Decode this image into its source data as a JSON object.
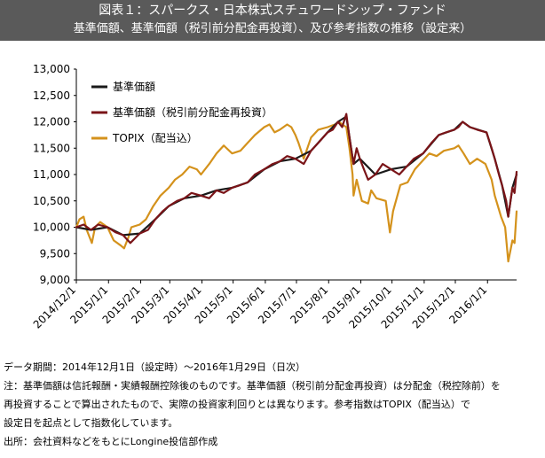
{
  "header": {
    "title": "図表１：スパークス・日本株式スチュワードシップ・ファンド",
    "subtitle": "基準価額、基準価額（税引前分配金再投資）、及び参考指数の推移（設定来）"
  },
  "chart_data": {
    "type": "line",
    "x_ticks": [
      "2014/12/1",
      "2015/1/1",
      "2015/2/1",
      "2015/3/1",
      "2015/4/1",
      "2015/5/1",
      "2015/6/1",
      "2015/7/1",
      "2015/8/1",
      "2015/9/1",
      "2015/10/1",
      "2015/11/1",
      "2015/12/1",
      "2016/1/1"
    ],
    "y_ticks": [
      "13,000",
      "12,500",
      "12,000",
      "11,500",
      "11,000",
      "10,500",
      "10,000",
      "9,500",
      "9,000"
    ],
    "ylim": [
      9000,
      13000
    ],
    "xlim": [
      "2014-12-01",
      "2016-01-29"
    ],
    "legend_position": "top-left",
    "series": [
      {
        "name": "基準価額",
        "color": "#1a1a1a",
        "points": [
          [
            "2014-12-01",
            10000
          ],
          [
            "2014-12-15",
            9950
          ],
          [
            "2014-12-31",
            10000
          ],
          [
            "2015-01-15",
            9850
          ],
          [
            "2015-01-31",
            9880
          ],
          [
            "2015-02-15",
            10150
          ],
          [
            "2015-02-28",
            10400
          ],
          [
            "2015-03-15",
            10550
          ],
          [
            "2015-03-31",
            10600
          ],
          [
            "2015-04-15",
            10700
          ],
          [
            "2015-04-30",
            10750
          ],
          [
            "2015-05-15",
            10850
          ],
          [
            "2015-05-31",
            11100
          ],
          [
            "2015-06-15",
            11250
          ],
          [
            "2015-06-30",
            11300
          ],
          [
            "2015-07-15",
            11450
          ],
          [
            "2015-07-31",
            11800
          ],
          [
            "2015-08-10",
            12000
          ],
          [
            "2015-08-18",
            12100
          ],
          [
            "2015-08-25",
            11200
          ],
          [
            "2015-08-31",
            11300
          ],
          [
            "2015-09-15",
            11000
          ],
          [
            "2015-09-30",
            11100
          ],
          [
            "2015-10-15",
            11150
          ],
          [
            "2015-10-31",
            11400
          ],
          [
            "2015-11-15",
            11750
          ],
          [
            "2015-11-30",
            11850
          ],
          [
            "2015-12-08",
            12000
          ],
          [
            "2015-12-15",
            11900
          ],
          [
            "2015-12-31",
            11800
          ],
          [
            "2016-01-08",
            11300
          ],
          [
            "2016-01-15",
            10800
          ],
          [
            "2016-01-21",
            10200
          ],
          [
            "2016-01-25",
            10750
          ],
          [
            "2016-01-29",
            11000
          ]
        ]
      },
      {
        "name": "基準価額（税引前分配金再投資）",
        "color": "#7a1418",
        "points": [
          [
            "2014-12-01",
            10000
          ],
          [
            "2014-12-08",
            10050
          ],
          [
            "2014-12-15",
            9950
          ],
          [
            "2014-12-22",
            10050
          ],
          [
            "2014-12-31",
            10000
          ],
          [
            "2015-01-08",
            9900
          ],
          [
            "2015-01-15",
            9850
          ],
          [
            "2015-01-22",
            9700
          ],
          [
            "2015-01-31",
            9880
          ],
          [
            "2015-02-08",
            9950
          ],
          [
            "2015-02-15",
            10150
          ],
          [
            "2015-02-22",
            10300
          ],
          [
            "2015-02-28",
            10400
          ],
          [
            "2015-03-08",
            10500
          ],
          [
            "2015-03-15",
            10550
          ],
          [
            "2015-03-22",
            10650
          ],
          [
            "2015-03-31",
            10600
          ],
          [
            "2015-04-08",
            10550
          ],
          [
            "2015-04-15",
            10700
          ],
          [
            "2015-04-22",
            10650
          ],
          [
            "2015-04-30",
            10750
          ],
          [
            "2015-05-08",
            10800
          ],
          [
            "2015-05-15",
            10850
          ],
          [
            "2015-05-22",
            11000
          ],
          [
            "2015-05-31",
            11100
          ],
          [
            "2015-06-08",
            11200
          ],
          [
            "2015-06-15",
            11250
          ],
          [
            "2015-06-22",
            11350
          ],
          [
            "2015-06-30",
            11300
          ],
          [
            "2015-07-08",
            11200
          ],
          [
            "2015-07-15",
            11450
          ],
          [
            "2015-07-22",
            11600
          ],
          [
            "2015-07-31",
            11800
          ],
          [
            "2015-08-05",
            11850
          ],
          [
            "2015-08-10",
            12000
          ],
          [
            "2015-08-14",
            11900
          ],
          [
            "2015-08-18",
            12150
          ],
          [
            "2015-08-21",
            11700
          ],
          [
            "2015-08-25",
            11200
          ],
          [
            "2015-08-28",
            11500
          ],
          [
            "2015-08-31",
            11300
          ],
          [
            "2015-09-04",
            11100
          ],
          [
            "2015-09-08",
            10900
          ],
          [
            "2015-09-15",
            11000
          ],
          [
            "2015-09-22",
            11200
          ],
          [
            "2015-09-30",
            11100
          ],
          [
            "2015-10-08",
            11000
          ],
          [
            "2015-10-15",
            11150
          ],
          [
            "2015-10-22",
            11300
          ],
          [
            "2015-10-31",
            11400
          ],
          [
            "2015-11-08",
            11600
          ],
          [
            "2015-11-15",
            11750
          ],
          [
            "2015-11-22",
            11800
          ],
          [
            "2015-11-30",
            11850
          ],
          [
            "2015-12-04",
            11900
          ],
          [
            "2015-12-08",
            12000
          ],
          [
            "2015-12-15",
            11900
          ],
          [
            "2015-12-22",
            11850
          ],
          [
            "2015-12-31",
            11800
          ],
          [
            "2016-01-05",
            11500
          ],
          [
            "2016-01-08",
            11300
          ],
          [
            "2016-01-12",
            11000
          ],
          [
            "2016-01-15",
            10800
          ],
          [
            "2016-01-19",
            10500
          ],
          [
            "2016-01-21",
            10200
          ],
          [
            "2016-01-25",
            10750
          ],
          [
            "2016-01-27",
            10650
          ],
          [
            "2016-01-29",
            11050
          ]
        ]
      },
      {
        "name": "TOPIX（配当込）",
        "color": "#d4921c",
        "points": [
          [
            "2014-12-01",
            10000
          ],
          [
            "2014-12-04",
            10150
          ],
          [
            "2014-12-08",
            10200
          ],
          [
            "2014-12-11",
            9950
          ],
          [
            "2014-12-16",
            9700
          ],
          [
            "2014-12-19",
            10000
          ],
          [
            "2014-12-24",
            10100
          ],
          [
            "2014-12-31",
            10000
          ],
          [
            "2015-01-06",
            9750
          ],
          [
            "2015-01-13",
            9650
          ],
          [
            "2015-01-16",
            9600
          ],
          [
            "2015-01-20",
            9800
          ],
          [
            "2015-01-23",
            10000
          ],
          [
            "2015-01-31",
            10050
          ],
          [
            "2015-02-06",
            10150
          ],
          [
            "2015-02-13",
            10400
          ],
          [
            "2015-02-20",
            10600
          ],
          [
            "2015-02-28",
            10750
          ],
          [
            "2015-03-06",
            10900
          ],
          [
            "2015-03-13",
            11000
          ],
          [
            "2015-03-20",
            11150
          ],
          [
            "2015-03-27",
            11100
          ],
          [
            "2015-03-31",
            11000
          ],
          [
            "2015-04-08",
            11200
          ],
          [
            "2015-04-15",
            11400
          ],
          [
            "2015-04-22",
            11550
          ],
          [
            "2015-04-30",
            11400
          ],
          [
            "2015-05-08",
            11450
          ],
          [
            "2015-05-15",
            11600
          ],
          [
            "2015-05-22",
            11750
          ],
          [
            "2015-05-31",
            11900
          ],
          [
            "2015-06-05",
            11950
          ],
          [
            "2015-06-10",
            11800
          ],
          [
            "2015-06-15",
            11850
          ],
          [
            "2015-06-22",
            11950
          ],
          [
            "2015-06-26",
            11900
          ],
          [
            "2015-06-30",
            11750
          ],
          [
            "2015-07-03",
            11600
          ],
          [
            "2015-07-08",
            11300
          ],
          [
            "2015-07-15",
            11700
          ],
          [
            "2015-07-22",
            11850
          ],
          [
            "2015-07-31",
            11900
          ],
          [
            "2015-08-07",
            11950
          ],
          [
            "2015-08-11",
            12000
          ],
          [
            "2015-08-14",
            11950
          ],
          [
            "2015-08-18",
            11900
          ],
          [
            "2015-08-21",
            11500
          ],
          [
            "2015-08-24",
            11000
          ],
          [
            "2015-08-25",
            10600
          ],
          [
            "2015-08-28",
            10900
          ],
          [
            "2015-09-02",
            10500
          ],
          [
            "2015-09-08",
            10450
          ],
          [
            "2015-09-11",
            10700
          ],
          [
            "2015-09-16",
            10550
          ],
          [
            "2015-09-25",
            10500
          ],
          [
            "2015-09-29",
            9900
          ],
          [
            "2015-10-02",
            10300
          ],
          [
            "2015-10-09",
            10800
          ],
          [
            "2015-10-16",
            10850
          ],
          [
            "2015-10-23",
            11100
          ],
          [
            "2015-10-30",
            11250
          ],
          [
            "2015-11-06",
            11400
          ],
          [
            "2015-11-13",
            11350
          ],
          [
            "2015-11-20",
            11450
          ],
          [
            "2015-11-30",
            11500
          ],
          [
            "2015-12-04",
            11550
          ],
          [
            "2015-12-09",
            11400
          ],
          [
            "2015-12-15",
            11200
          ],
          [
            "2015-12-22",
            11300
          ],
          [
            "2015-12-30",
            11200
          ],
          [
            "2016-01-05",
            10900
          ],
          [
            "2016-01-08",
            10600
          ],
          [
            "2016-01-14",
            10200
          ],
          [
            "2016-01-18",
            10000
          ],
          [
            "2016-01-21",
            9350
          ],
          [
            "2016-01-25",
            9750
          ],
          [
            "2016-01-27",
            9700
          ],
          [
            "2016-01-29",
            10300
          ]
        ]
      }
    ]
  },
  "notes": {
    "period": "データ期間：2014年12月1日（設定時）～2016年1月29日（日次）",
    "note_line1": "注：基準価額は信託報酬・実績報酬控除後のものです。基準価額（税引前分配金再投資）は分配金（税控除前）を",
    "note_line2": "再投資することで算出されたもので、実際の投資家利回りとは異なります。参考指数はTOPIX（配当込）で",
    "note_line3": "設定日を起点として指数化しています。",
    "source": "出所：会社資料などをもとにLongine投信部作成"
  }
}
